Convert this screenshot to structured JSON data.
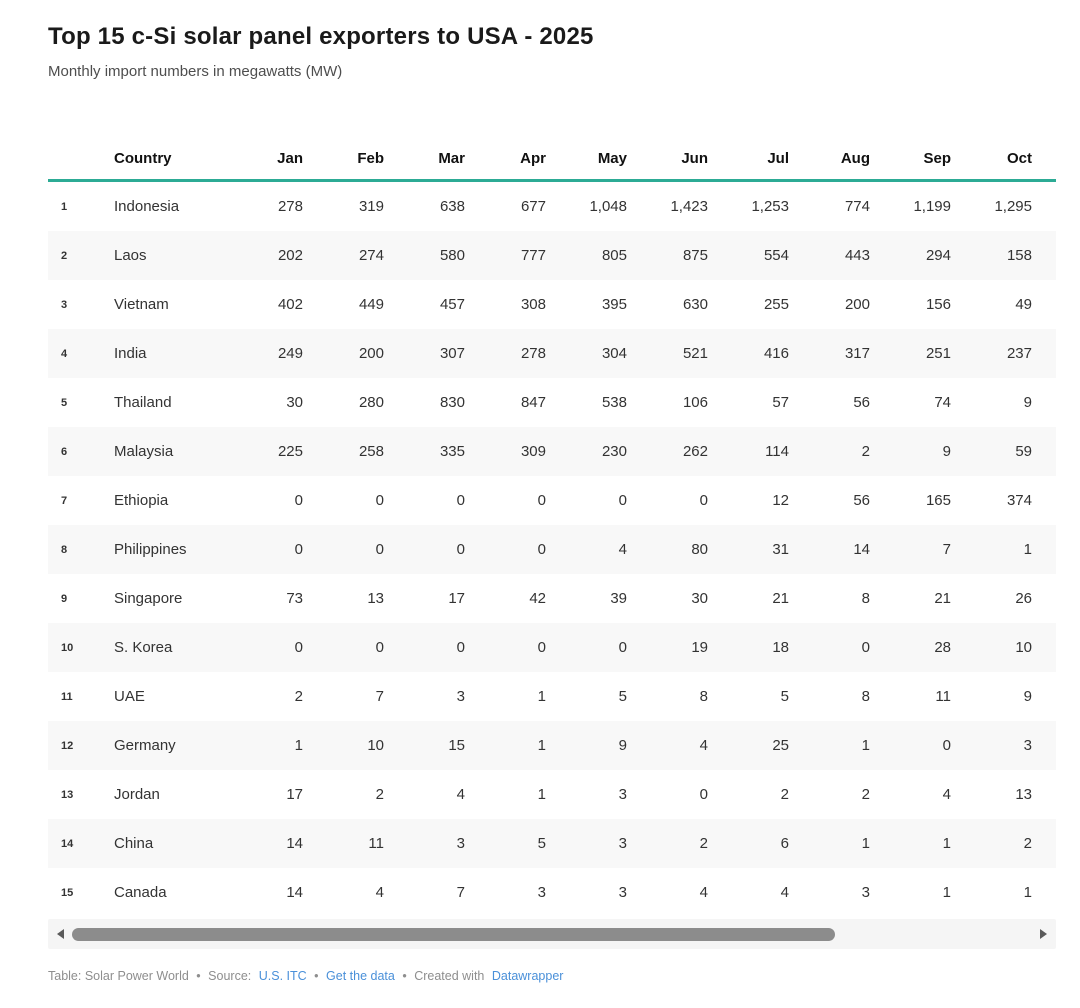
{
  "chart_data": {
    "type": "table",
    "title": "Top 15 c-Si solar panel exporters to USA - 2025",
    "subtitle": "Monthly import numbers in megawatts (MW)",
    "rank_header": "",
    "country_header": "Country",
    "month_headers": [
      "Jan",
      "Feb",
      "Mar",
      "Apr",
      "May",
      "Jun",
      "Jul",
      "Aug",
      "Sep",
      "Oct"
    ],
    "rows": [
      {
        "rank": "1",
        "country": "Indonesia",
        "values": [
          278,
          319,
          638,
          677,
          1048,
          1423,
          1253,
          774,
          1199,
          1295
        ]
      },
      {
        "rank": "2",
        "country": "Laos",
        "values": [
          202,
          274,
          580,
          777,
          805,
          875,
          554,
          443,
          294,
          158
        ]
      },
      {
        "rank": "3",
        "country": "Vietnam",
        "values": [
          402,
          449,
          457,
          308,
          395,
          630,
          255,
          200,
          156,
          49
        ]
      },
      {
        "rank": "4",
        "country": "India",
        "values": [
          249,
          200,
          307,
          278,
          304,
          521,
          416,
          317,
          251,
          237
        ]
      },
      {
        "rank": "5",
        "country": "Thailand",
        "values": [
          30,
          280,
          830,
          847,
          538,
          106,
          57,
          56,
          74,
          9
        ]
      },
      {
        "rank": "6",
        "country": "Malaysia",
        "values": [
          225,
          258,
          335,
          309,
          230,
          262,
          114,
          2,
          9,
          59
        ]
      },
      {
        "rank": "7",
        "country": "Ethiopia",
        "values": [
          0,
          0,
          0,
          0,
          0,
          0,
          12,
          56,
          165,
          374
        ]
      },
      {
        "rank": "8",
        "country": "Philippines",
        "values": [
          0,
          0,
          0,
          0,
          4,
          80,
          31,
          14,
          7,
          1
        ]
      },
      {
        "rank": "9",
        "country": "Singapore",
        "values": [
          73,
          13,
          17,
          42,
          39,
          30,
          21,
          8,
          21,
          26
        ]
      },
      {
        "rank": "10",
        "country": "S. Korea",
        "values": [
          0,
          0,
          0,
          0,
          0,
          19,
          18,
          0,
          28,
          10
        ]
      },
      {
        "rank": "11",
        "country": "UAE",
        "values": [
          2,
          7,
          3,
          1,
          5,
          8,
          5,
          8,
          11,
          9
        ]
      },
      {
        "rank": "12",
        "country": "Germany",
        "values": [
          1,
          10,
          15,
          1,
          9,
          4,
          25,
          1,
          0,
          3
        ]
      },
      {
        "rank": "13",
        "country": "Jordan",
        "values": [
          17,
          2,
          4,
          1,
          3,
          0,
          2,
          2,
          4,
          13
        ]
      },
      {
        "rank": "14",
        "country": "China",
        "values": [
          14,
          11,
          3,
          5,
          3,
          2,
          6,
          1,
          1,
          2
        ]
      },
      {
        "rank": "15",
        "country": "Canada",
        "values": [
          14,
          4,
          7,
          3,
          3,
          4,
          4,
          3,
          1,
          1
        ]
      }
    ],
    "layout_hints": {
      "zebra_striping": "even rows shaded",
      "numeric_alignment": "right",
      "header_rule_color": "#2cab95"
    }
  },
  "scrollbar": {
    "orientation": "horizontal",
    "thumb_position_pct": 0,
    "thumb_size_pct": 79.5
  },
  "footer": {
    "credit": "Table: Solar Power World",
    "separator": "•",
    "source_prefix": "Source:",
    "source_link": "U.S. ITC",
    "get_data_link": "Get the data",
    "created_prefix": "Created with",
    "created_link": "Datawrapper"
  },
  "colors": {
    "accent_line": "#2cab95",
    "link": "#4a90d9",
    "alt_row_bg": "#f8f8f8",
    "scrollbar_thumb": "#8c8c8c",
    "scrollbar_track": "#f5f5f5",
    "footer_text": "#8e8e8e"
  }
}
